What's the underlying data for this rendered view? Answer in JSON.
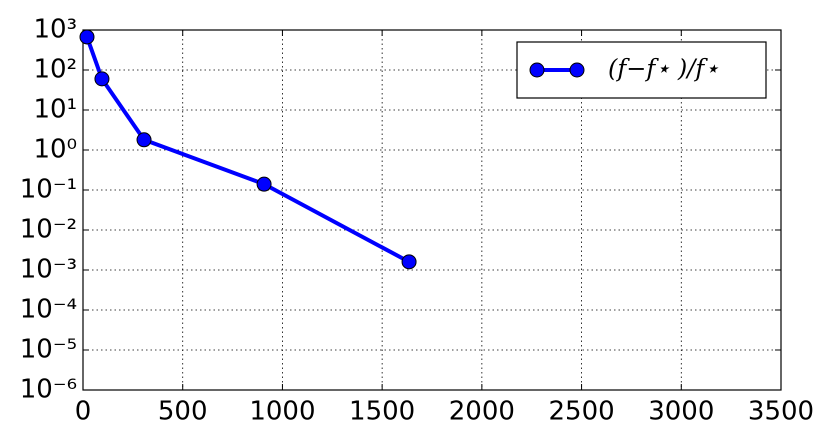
{
  "chart_data": {
    "type": "line",
    "x": [
      20,
      95,
      306,
      908,
      1635
    ],
    "series": [
      {
        "name": "(f−f⋆ )/f⋆",
        "color": "#0000ff",
        "values": [
          670,
          60,
          1.8,
          0.14,
          0.0016
        ]
      }
    ],
    "xlim": [
      0,
      3500
    ],
    "xticks": [
      0,
      500,
      1000,
      1500,
      2000,
      2500,
      3000,
      3500
    ],
    "ylim": [
      1e-06,
      1000
    ],
    "yticks": [
      {
        "value": 1e-06,
        "label": "10⁻⁶"
      },
      {
        "value": 1e-05,
        "label": "10⁻⁵"
      },
      {
        "value": 0.0001,
        "label": "10⁻⁴"
      },
      {
        "value": 0.001,
        "label": "10⁻³"
      },
      {
        "value": 0.01,
        "label": "10⁻²"
      },
      {
        "value": 0.1,
        "label": "10⁻¹"
      },
      {
        "value": 1,
        "label": "10⁰"
      },
      {
        "value": 10,
        "label": "10¹"
      },
      {
        "value": 100,
        "label": "10²"
      },
      {
        "value": 1000,
        "label": "10³"
      }
    ],
    "ylog": true,
    "grid": true,
    "legend": "upper right"
  }
}
